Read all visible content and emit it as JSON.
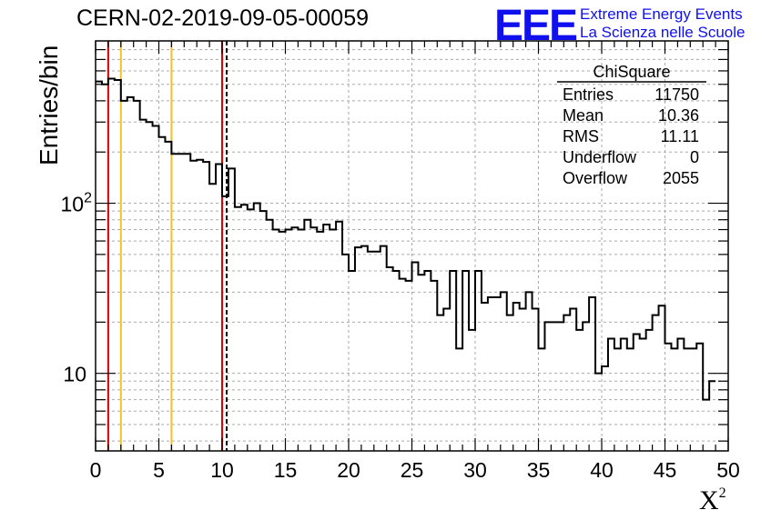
{
  "title": "CERN-02-2019-09-05-00059",
  "logo": {
    "mark": "EEE",
    "line1": "Extreme Energy Events",
    "line2": "La Scienza nelle Scuole"
  },
  "stats": {
    "name": "ChiSquare",
    "rows": [
      {
        "label": "Entries",
        "value": "11750"
      },
      {
        "label": "Mean",
        "value": "10.36"
      },
      {
        "label": "RMS",
        "value": "11.11"
      },
      {
        "label": "Underflow",
        "value": "0"
      },
      {
        "label": "Overflow",
        "value": "2055"
      }
    ]
  },
  "chart_data": {
    "type": "histogram",
    "title": "CERN-02-2019-09-05-00059",
    "xlabel": "X",
    "xlabel_sup": "2",
    "ylabel": "Entries/bin",
    "yscale": "log",
    "xlim": [
      0,
      50
    ],
    "ylim": [
      3.5,
      900
    ],
    "grid": true,
    "bin_width": 0.5,
    "x_ticks": [
      "0",
      "5",
      "10",
      "15",
      "20",
      "25",
      "30",
      "35",
      "40",
      "45",
      "50"
    ],
    "y_tick_labels": [
      {
        "value": 10,
        "label": "10"
      },
      {
        "value": 100,
        "label": "10",
        "sup": "2"
      }
    ],
    "values": [
      520,
      500,
      540,
      530,
      400,
      420,
      400,
      310,
      300,
      285,
      245,
      230,
      195,
      195,
      195,
      178,
      180,
      175,
      130,
      170,
      110,
      160,
      95,
      98,
      92,
      100,
      90,
      80,
      70,
      68,
      70,
      72,
      70,
      80,
      72,
      68,
      75,
      70,
      78,
      50,
      40,
      55,
      56,
      52,
      52,
      56,
      42,
      40,
      36,
      35,
      45,
      38,
      40,
      35,
      22,
      24,
      40,
      14,
      40,
      18,
      40,
      26,
      28,
      28,
      30,
      22,
      26,
      24,
      30,
      24,
      14,
      20,
      20,
      20,
      22,
      24,
      18,
      20,
      28,
      10,
      11,
      16,
      14,
      16,
      14,
      17,
      16,
      18,
      22,
      25,
      15,
      14,
      16,
      14,
      14,
      15,
      7,
      9
    ],
    "vertical_lines": [
      {
        "x": 1,
        "color": "#e00000",
        "style": "solid"
      },
      {
        "x": 2,
        "color": "#f2c12e",
        "style": "solid"
      },
      {
        "x": 6,
        "color": "#f2c12e",
        "style": "solid"
      },
      {
        "x": 10,
        "color": "#e00000",
        "style": "solid"
      },
      {
        "x": 10.36,
        "color": "#000000",
        "style": "dashed"
      }
    ]
  }
}
